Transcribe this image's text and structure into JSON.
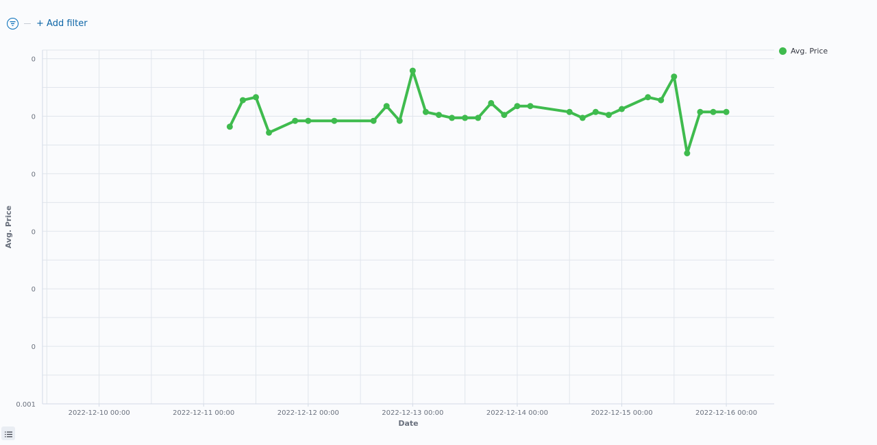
{
  "filter": {
    "add_filter_label": "+ Add filter"
  },
  "icons": {
    "filter": "filter-icon",
    "list": "list-icon"
  },
  "colors": {
    "series": "#3fbb4e",
    "accent": "#0b64a6",
    "grid": "#e0e5ec",
    "text": "#69707d"
  },
  "chart_data": {
    "type": "line",
    "title": "",
    "xlabel": "Date",
    "ylabel": "Avg. Price",
    "x_ticks": [
      "2022-12-10 00:00",
      "2022-12-11 00:00",
      "2022-12-12 00:00",
      "2022-12-13 00:00",
      "2022-12-14 00:00",
      "2022-12-15 00:00",
      "2022-12-16 00:00"
    ],
    "y_ticks": [
      "0.001",
      "0",
      "0",
      "0",
      "0",
      "0",
      "0"
    ],
    "xlim": [
      "2022-12-09 11:00",
      "2022-12-16 11:00"
    ],
    "ylim": [
      0,
      0.0012
    ],
    "grid": true,
    "legend": "top-right",
    "series": [
      {
        "name": "Avg. Price",
        "color": "#3fbb4e",
        "points": [
          [
            "2022-12-11 06:00",
            0.00094
          ],
          [
            "2022-12-11 09:00",
            0.00103
          ],
          [
            "2022-12-11 12:00",
            0.00104
          ],
          [
            "2022-12-11 15:00",
            0.00092
          ],
          [
            "2022-12-11 21:00",
            0.00096
          ],
          [
            "2022-12-12 00:00",
            0.00096
          ],
          [
            "2022-12-12 06:00",
            0.00096
          ],
          [
            "2022-12-12 15:00",
            0.00096
          ],
          [
            "2022-12-12 18:00",
            0.00101
          ],
          [
            "2022-12-12 21:00",
            0.00096
          ],
          [
            "2022-12-13 00:00",
            0.00113
          ],
          [
            "2022-12-13 03:00",
            0.00099
          ],
          [
            "2022-12-13 06:00",
            0.00098
          ],
          [
            "2022-12-13 09:00",
            0.00097
          ],
          [
            "2022-12-13 12:00",
            0.00097
          ],
          [
            "2022-12-13 15:00",
            0.00097
          ],
          [
            "2022-12-13 18:00",
            0.00102
          ],
          [
            "2022-12-13 21:00",
            0.00098
          ],
          [
            "2022-12-14 00:00",
            0.00101
          ],
          [
            "2022-12-14 03:00",
            0.00101
          ],
          [
            "2022-12-14 12:00",
            0.00099
          ],
          [
            "2022-12-14 15:00",
            0.00097
          ],
          [
            "2022-12-14 18:00",
            0.00099
          ],
          [
            "2022-12-14 21:00",
            0.00098
          ],
          [
            "2022-12-15 00:00",
            0.001
          ],
          [
            "2022-12-15 06:00",
            0.00104
          ],
          [
            "2022-12-15 09:00",
            0.00103
          ],
          [
            "2022-12-15 12:00",
            0.00111
          ],
          [
            "2022-12-15 15:00",
            0.00085
          ],
          [
            "2022-12-15 18:00",
            0.00099
          ],
          [
            "2022-12-15 21:00",
            0.00099
          ],
          [
            "2022-12-16 00:00",
            0.00099
          ]
        ]
      }
    ]
  }
}
